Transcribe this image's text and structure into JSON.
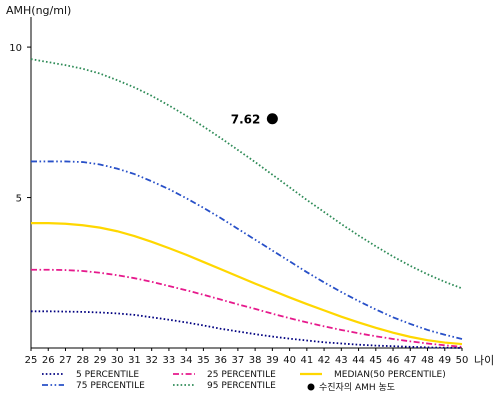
{
  "chart_data": {
    "type": "line",
    "title": "",
    "ylabel": "AMH(ng/ml)",
    "xlabel": "나이",
    "x": [
      25,
      26,
      27,
      28,
      29,
      30,
      31,
      32,
      33,
      34,
      35,
      36,
      37,
      38,
      39,
      40,
      41,
      42,
      43,
      44,
      45,
      46,
      47,
      48,
      49,
      50
    ],
    "xlim": [
      25,
      50
    ],
    "ylim": [
      0,
      11
    ],
    "yticks": [
      5,
      10
    ],
    "grid": false,
    "legend_position": "bottom",
    "series": [
      {
        "name": "5 PERCENTILE",
        "color": "#000080",
        "style": "dotted",
        "values": [
          1.22,
          1.22,
          1.21,
          1.2,
          1.18,
          1.15,
          1.1,
          1.02,
          0.94,
          0.85,
          0.75,
          0.64,
          0.55,
          0.46,
          0.38,
          0.31,
          0.25,
          0.19,
          0.15,
          0.11,
          0.08,
          0.06,
          0.04,
          0.02,
          0.01,
          0.0
        ]
      },
      {
        "name": "25 PERCENTILE",
        "color": "#e6198c",
        "style": "dashdot",
        "values": [
          2.6,
          2.6,
          2.59,
          2.56,
          2.5,
          2.42,
          2.32,
          2.2,
          2.06,
          1.92,
          1.77,
          1.61,
          1.45,
          1.3,
          1.14,
          0.99,
          0.85,
          0.72,
          0.6,
          0.49,
          0.39,
          0.3,
          0.22,
          0.15,
          0.09,
          0.04
        ]
      },
      {
        "name": "MEDIAN(50 PERCENTILE)",
        "color": "#ffd700",
        "style": "solid",
        "values": [
          4.15,
          4.15,
          4.13,
          4.08,
          4.0,
          3.88,
          3.72,
          3.53,
          3.32,
          3.1,
          2.86,
          2.62,
          2.38,
          2.14,
          1.91,
          1.68,
          1.46,
          1.25,
          1.04,
          0.85,
          0.67,
          0.51,
          0.37,
          0.26,
          0.18,
          0.13
        ]
      },
      {
        "name": "75 PERCENTILE",
        "color": "#2850c8",
        "style": "dashdotdot",
        "values": [
          6.2,
          6.2,
          6.2,
          6.18,
          6.1,
          5.96,
          5.78,
          5.54,
          5.28,
          4.98,
          4.66,
          4.32,
          3.96,
          3.6,
          3.24,
          2.88,
          2.52,
          2.18,
          1.86,
          1.56,
          1.28,
          1.02,
          0.8,
          0.6,
          0.44,
          0.3
        ]
      },
      {
        "name": "95 PERCENTILE",
        "color": "#2e8b57",
        "style": "dotted",
        "values": [
          9.6,
          9.5,
          9.4,
          9.28,
          9.12,
          8.9,
          8.66,
          8.38,
          8.06,
          7.72,
          7.36,
          6.98,
          6.58,
          6.18,
          5.76,
          5.34,
          4.92,
          4.52,
          4.12,
          3.74,
          3.38,
          3.04,
          2.73,
          2.45,
          2.2,
          1.98
        ]
      }
    ],
    "marker": {
      "name": "수진자의 AMH 농도",
      "label": "7.62",
      "x": 39,
      "y": 7.62,
      "color": "#000000"
    }
  }
}
